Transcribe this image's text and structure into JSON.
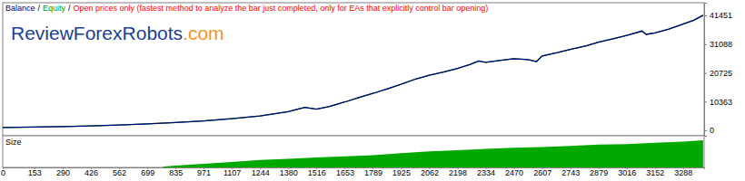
{
  "chart_data": [
    {
      "type": "line",
      "subtitle": "Open prices only (fastest method to analyze the bar just completed, only for EAs that explicitly control bar opening)",
      "annotations": [
        {
          "text": "/"
        },
        {
          "text": "ReviewForexRobots",
          "color": "#1c3f94"
        },
        {
          "text": ".com",
          "color": "#f7931e"
        }
      ],
      "legend": "top-left",
      "grid": false,
      "tick_labels": "y",
      "x": [
        0,
        153,
        290,
        426,
        562,
        699,
        835,
        971,
        1107,
        1244,
        1380,
        1460,
        1516,
        1580,
        1653,
        1720,
        1789,
        1860,
        1925,
        2000,
        2062,
        2130,
        2198,
        2260,
        2300,
        2334,
        2400,
        2470,
        2540,
        2580,
        2607,
        2680,
        2743,
        2820,
        2879,
        2950,
        3016,
        3090,
        3110,
        3152,
        3220,
        3288,
        3340,
        3385
      ],
      "series": [
        {
          "name": "Equity",
          "color": "#00a000",
          "values": [
            1000,
            1150,
            1350,
            1600,
            1900,
            2300,
            2800,
            3400,
            4200,
            5200,
            6700,
            8300,
            7600,
            8600,
            10200,
            11800,
            13300,
            15000,
            16600,
            18600,
            19900,
            21000,
            22300,
            23800,
            25000,
            24500,
            25200,
            25800,
            25500,
            24800,
            26800,
            28000,
            29200,
            30500,
            31800,
            33000,
            34200,
            35800,
            34600,
            35100,
            36500,
            38300,
            39700,
            41500
          ]
        },
        {
          "name": "Balance",
          "color": "#000080",
          "values": [
            1000,
            1150,
            1350,
            1600,
            1900,
            2300,
            2800,
            3400,
            4200,
            5200,
            6700,
            8300,
            7600,
            8600,
            10200,
            11800,
            13300,
            15000,
            16600,
            18600,
            19900,
            21000,
            22300,
            23800,
            25000,
            24500,
            25200,
            25800,
            25500,
            24800,
            26800,
            28000,
            29200,
            30500,
            31800,
            33000,
            34200,
            35800,
            34600,
            35100,
            36500,
            38300,
            39700,
            41500
          ]
        }
      ],
      "xlim": [
        0,
        3390
      ],
      "ylim": [
        -1960,
        46020
      ],
      "yticks": [
        0,
        10363,
        20725,
        31088,
        41451
      ]
    },
    {
      "type": "area",
      "title": "Size",
      "color": "#00a800",
      "grid": false,
      "tick_labels": "x",
      "x": [
        0,
        770,
        780,
        835,
        971,
        1107,
        1244,
        1380,
        1516,
        1653,
        1789,
        1925,
        2062,
        2198,
        2334,
        2470,
        2607,
        2743,
        2879,
        3016,
        3152,
        3288,
        3385
      ],
      "values": [
        0,
        0,
        0.15,
        0.3,
        0.6,
        0.9,
        1.2,
        1.4,
        1.6,
        1.8,
        2.0,
        2.3,
        2.6,
        2.8,
        3.0,
        3.2,
        3.3,
        3.5,
        3.7,
        3.8,
        4.0,
        4.2,
        4.4
      ],
      "xlim": [
        0,
        3390
      ],
      "ylim": [
        0,
        5
      ],
      "xticks": [
        0,
        153,
        290,
        426,
        562,
        699,
        835,
        971,
        1107,
        1244,
        1380,
        1516,
        1653,
        1789,
        1925,
        2062,
        2198,
        2334,
        2470,
        2607,
        2743,
        2879,
        3016,
        3152,
        3288
      ]
    }
  ]
}
